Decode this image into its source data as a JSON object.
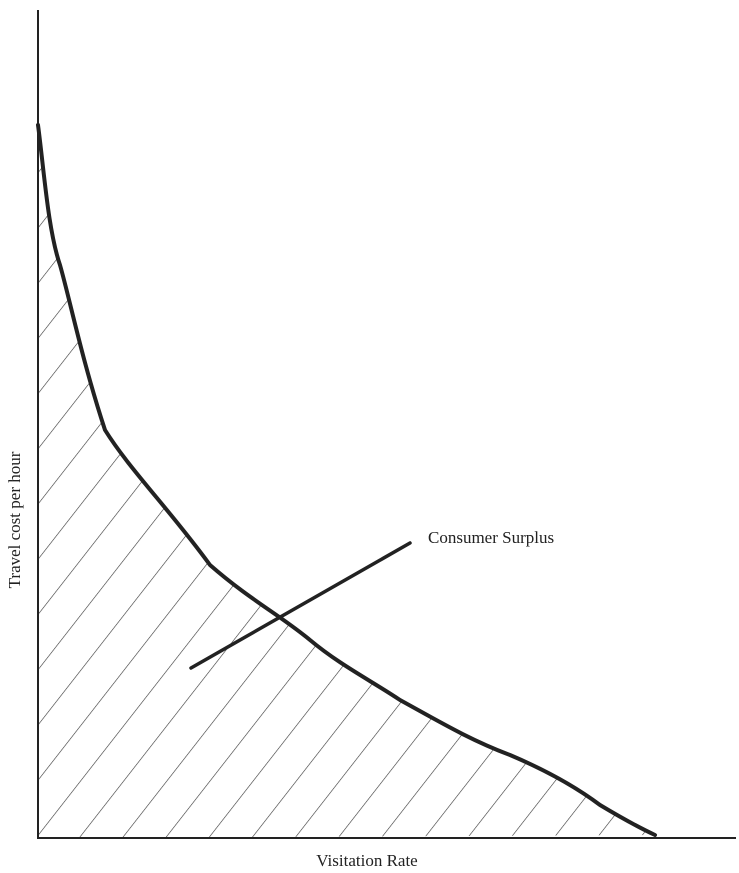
{
  "x_axis": {
    "label": "Visitation Rate"
  },
  "y_axis": {
    "label": "Travel cost per hour"
  },
  "annotation": {
    "label": "Consumer Surplus"
  }
}
